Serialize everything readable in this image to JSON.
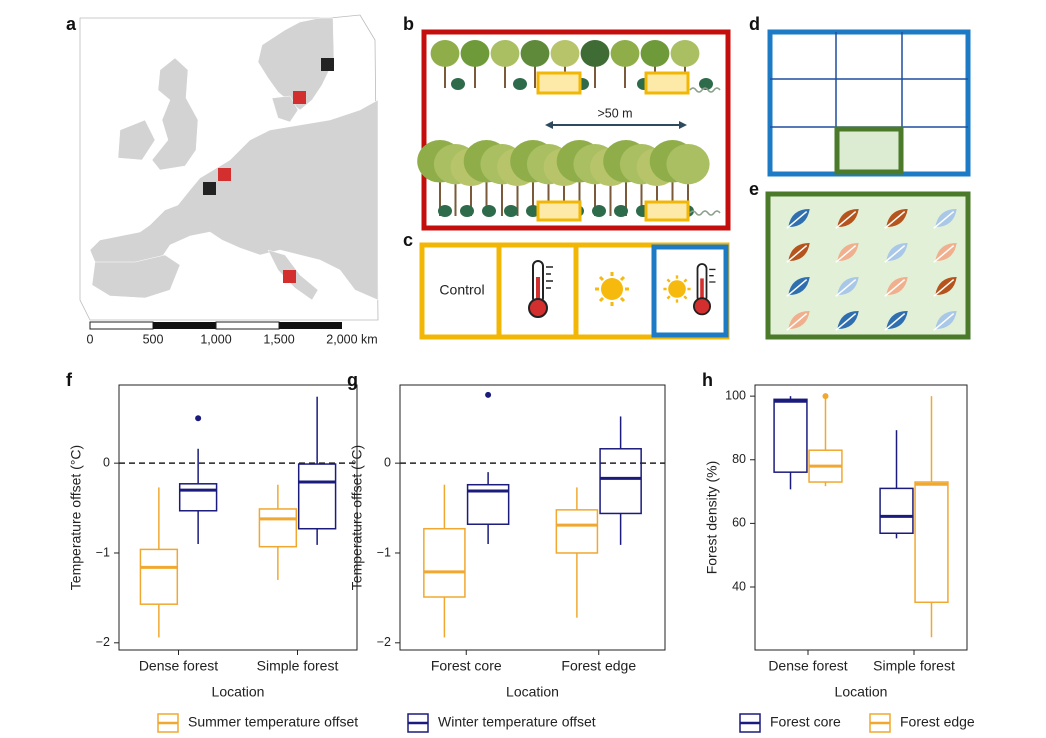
{
  "map": {
    "label": "a",
    "scale_labels": [
      "0",
      "500",
      "1,000",
      "1,500",
      "2,000 km"
    ]
  },
  "panel_b": {
    "label": "b",
    "distance": ">50 m"
  },
  "panel_c": {
    "label": "c",
    "control": "Control"
  },
  "panel_d": {
    "label": "d"
  },
  "panel_e": {
    "label": "e"
  },
  "chart_data": [
    {
      "type": "box",
      "panel": "f",
      "ylabel": "Temperature offset (°C)",
      "xlabel": "Location",
      "categories": [
        "Dense forest",
        "Simple forest"
      ],
      "ylim": [
        -2.08,
        0.87
      ],
      "yticks": [
        {
          "value": -2,
          "label": "−2"
        },
        {
          "value": -1,
          "label": "−1"
        },
        0
      ],
      "hline": 0,
      "series": [
        {
          "name": "Summer temperature offset",
          "color": "#f0a830",
          "boxes": [
            {
              "min": -1.94,
              "q1": -1.57,
              "median": -1.16,
              "q3": -0.96,
              "max": -0.27,
              "outliers": []
            },
            {
              "min": -1.3,
              "q1": -0.93,
              "median": -0.62,
              "q3": -0.51,
              "max": -0.24,
              "outliers": []
            }
          ]
        },
        {
          "name": "Winter temperature offset",
          "color": "#1b1b7d",
          "boxes": [
            {
              "min": -0.9,
              "q1": -0.53,
              "median": -0.3,
              "q3": -0.23,
              "max": 0.16,
              "outliers": [
                0.5
              ]
            },
            {
              "min": -0.91,
              "q1": -0.73,
              "median": -0.21,
              "q3": -0.01,
              "max": 0.74,
              "outliers": []
            }
          ]
        }
      ]
    },
    {
      "type": "box",
      "panel": "g",
      "ylabel": "Temperature offset (°C)",
      "xlabel": "Location",
      "categories": [
        "Forest core",
        "Forest edge"
      ],
      "ylim": [
        -2.08,
        0.87
      ],
      "yticks": [
        {
          "value": -2,
          "label": "−2"
        },
        {
          "value": -1,
          "label": "−1"
        },
        0
      ],
      "hline": 0,
      "series": [
        {
          "color": "#f0a830",
          "boxes": [
            {
              "min": -1.94,
              "q1": -1.49,
              "median": -1.21,
              "q3": -0.73,
              "max": -0.24,
              "outliers": []
            },
            {
              "min": -1.72,
              "q1": -1.0,
              "median": -0.69,
              "q3": -0.52,
              "max": -0.27,
              "outliers": []
            }
          ]
        },
        {
          "color": "#1b1b7d",
          "boxes": [
            {
              "min": -0.9,
              "q1": -0.68,
              "median": -0.31,
              "q3": -0.24,
              "max": -0.1,
              "outliers": [
                0.76
              ]
            },
            {
              "min": -0.91,
              "q1": -0.56,
              "median": -0.17,
              "q3": 0.16,
              "max": 0.52,
              "outliers": []
            }
          ]
        }
      ]
    },
    {
      "type": "box",
      "panel": "h",
      "ylabel": "Forest density (%)",
      "xlabel": "Location",
      "categories": [
        "Dense forest",
        "Simple forest"
      ],
      "ylim": [
        20.2,
        103.5
      ],
      "yticks": [
        40,
        60,
        80,
        100
      ],
      "series": [
        {
          "name": "Forest core",
          "color": "#1b1b7d",
          "boxes": [
            {
              "min": 70.7,
              "q1": 76.1,
              "median": 98.4,
              "q3": 99,
              "max": 100,
              "outliers": []
            },
            {
              "min": 55.3,
              "q1": 56.9,
              "median": 62.2,
              "q3": 71,
              "max": 89.3,
              "outliers": []
            }
          ]
        },
        {
          "name": "Forest edge",
          "color": "#f0a830",
          "boxes": [
            {
              "min": 71.7,
              "q1": 73,
              "median": 78,
              "q3": 83,
              "max": 100,
              "outliers": [
                100
              ]
            },
            {
              "min": 24.2,
              "q1": 35.2,
              "median": 72.3,
              "q3": 73,
              "max": 100,
              "outliers": []
            }
          ]
        }
      ]
    }
  ]
}
